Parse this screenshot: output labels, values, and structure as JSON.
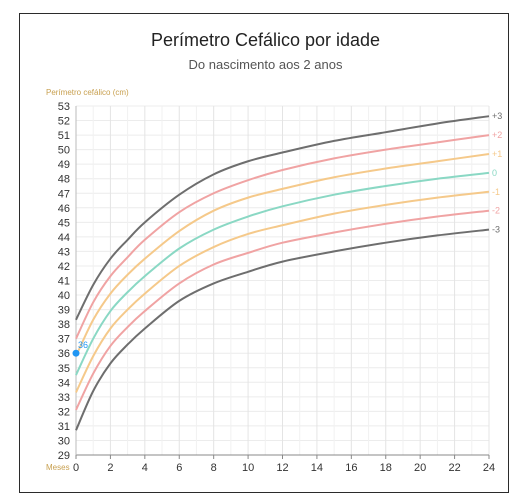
{
  "chart_data": {
    "type": "line",
    "title": "Perímetro Cefálico por idade",
    "subtitle": "Do nascimento aos 2 anos",
    "ylabel": "Perímetro cefálico (cm)",
    "xlabel": "Meses",
    "xlim": [
      0,
      24
    ],
    "ylim": [
      29,
      53
    ],
    "x_ticks": [
      0,
      2,
      4,
      6,
      8,
      10,
      12,
      14,
      16,
      18,
      20,
      22,
      24
    ],
    "y_ticks": [
      29,
      30,
      31,
      32,
      33,
      34,
      35,
      36,
      37,
      38,
      39,
      40,
      41,
      42,
      43,
      44,
      45,
      46,
      47,
      48,
      49,
      50,
      51,
      52,
      53
    ],
    "grid": true,
    "x": [
      0,
      1,
      2,
      3,
      4,
      6,
      8,
      10,
      12,
      15,
      18,
      21,
      24
    ],
    "series": [
      {
        "name": "+3",
        "color": "#6e6e6e",
        "values": [
          38.3,
          40.7,
          42.5,
          43.8,
          45.0,
          46.9,
          48.3,
          49.2,
          49.8,
          50.6,
          51.2,
          51.8,
          52.3
        ]
      },
      {
        "name": "+2",
        "color": "#f0a3a3",
        "values": [
          37.0,
          39.5,
          41.3,
          42.6,
          43.8,
          45.7,
          47.0,
          47.9,
          48.6,
          49.4,
          50.0,
          50.5,
          51.0
        ]
      },
      {
        "name": "+1",
        "color": "#f5c98a",
        "values": [
          35.8,
          38.3,
          40.1,
          41.4,
          42.5,
          44.4,
          45.8,
          46.7,
          47.3,
          48.1,
          48.7,
          49.2,
          49.7
        ]
      },
      {
        "name": "0",
        "color": "#8ad8c4",
        "values": [
          34.5,
          37.0,
          38.9,
          40.2,
          41.3,
          43.2,
          44.5,
          45.4,
          46.1,
          46.9,
          47.5,
          48.0,
          48.4
        ]
      },
      {
        "name": "-1",
        "color": "#f5c98a",
        "values": [
          33.3,
          35.8,
          37.7,
          39.0,
          40.1,
          42.0,
          43.3,
          44.2,
          44.8,
          45.6,
          46.2,
          46.7,
          47.1
        ]
      },
      {
        "name": "-2",
        "color": "#f0a3a3",
        "values": [
          32.1,
          34.6,
          36.5,
          37.8,
          38.9,
          40.8,
          42.1,
          42.9,
          43.6,
          44.3,
          44.9,
          45.4,
          45.8
        ]
      },
      {
        "name": "-3",
        "color": "#6e6e6e",
        "values": [
          30.7,
          33.4,
          35.3,
          36.6,
          37.7,
          39.6,
          40.8,
          41.6,
          42.3,
          43.0,
          43.6,
          44.1,
          44.5
        ]
      }
    ],
    "points": [
      {
        "x": 0,
        "y": 36,
        "label": "36",
        "color": "#2196f3"
      }
    ]
  }
}
